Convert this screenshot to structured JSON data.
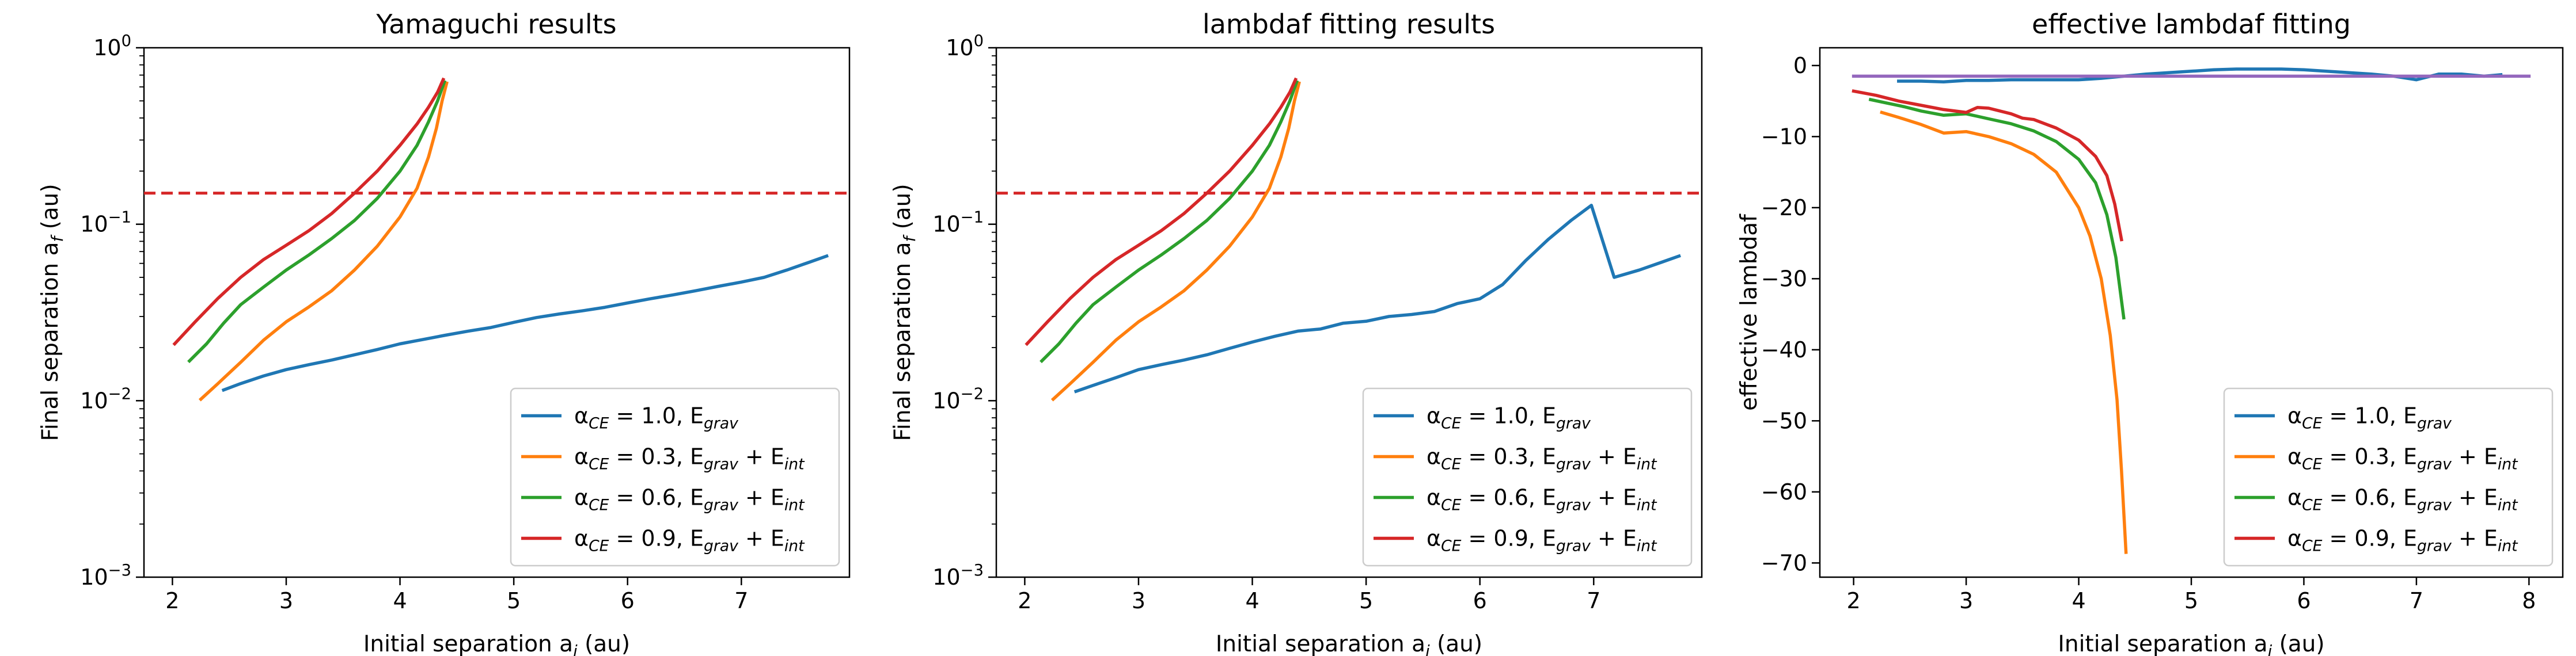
{
  "figure": {
    "x_tick_labels_log": [
      "2",
      "3",
      "4",
      "5",
      "6",
      "7"
    ],
    "x_tick_labels_lin": [
      "2",
      "3",
      "4",
      "5",
      "6",
      "7",
      "8"
    ],
    "y_tick_labels_log": [
      "10^-3",
      "10^-2",
      "10^-1",
      "10^0"
    ],
    "y_tick_labels_lin": [
      "0",
      "−10",
      "−20",
      "−30",
      "−40",
      "−50",
      "−60",
      "−70"
    ]
  },
  "chart_data": [
    {
      "type": "line",
      "title": "Yamaguchi results",
      "xlabel": "Initial separation a_i (au)",
      "ylabel": "Final separation a_f (au)",
      "yscale": "log",
      "xlim": [
        1.75,
        7.95
      ],
      "ylim": [
        0.001,
        1.0
      ],
      "xticks": [
        2,
        3,
        4,
        5,
        6,
        7
      ],
      "hline": {
        "y": 0.15,
        "color": "#d62728",
        "style": "dashed"
      },
      "legend_position": "lower right",
      "series": [
        {
          "name": "α_CE = 1.0, E_grav",
          "color": "#1f77b4",
          "x": [
            2.45,
            2.6,
            2.8,
            3.0,
            3.2,
            3.4,
            3.6,
            3.8,
            4.0,
            4.2,
            4.4,
            4.6,
            4.8,
            5.0,
            5.2,
            5.4,
            5.6,
            5.8,
            6.0,
            6.2,
            6.4,
            6.6,
            6.8,
            7.0,
            7.2,
            7.4,
            7.6,
            7.75
          ],
          "y": [
            0.0115,
            0.0125,
            0.0138,
            0.015,
            0.016,
            0.017,
            0.0182,
            0.0195,
            0.021,
            0.0222,
            0.0235,
            0.0248,
            0.026,
            0.0278,
            0.0296,
            0.031,
            0.0323,
            0.0338,
            0.0358,
            0.0378,
            0.0398,
            0.042,
            0.0445,
            0.047,
            0.05,
            0.055,
            0.061,
            0.066
          ]
        },
        {
          "name": "α_CE = 0.3, E_grav + E_int",
          "color": "#ff7f0e",
          "x": [
            2.25,
            2.4,
            2.6,
            2.8,
            3.0,
            3.2,
            3.4,
            3.6,
            3.8,
            4.0,
            4.15,
            4.25,
            4.32,
            4.37,
            4.41
          ],
          "y": [
            0.0102,
            0.0125,
            0.0165,
            0.022,
            0.028,
            0.034,
            0.042,
            0.055,
            0.075,
            0.11,
            0.16,
            0.24,
            0.35,
            0.5,
            0.63
          ]
        },
        {
          "name": "α_CE = 0.6, E_grav + E_int",
          "color": "#2ca02c",
          "x": [
            2.15,
            2.3,
            2.45,
            2.6,
            2.8,
            3.0,
            3.2,
            3.4,
            3.6,
            3.8,
            4.0,
            4.15,
            4.25,
            4.33,
            4.39
          ],
          "y": [
            0.0168,
            0.021,
            0.0275,
            0.035,
            0.044,
            0.055,
            0.067,
            0.083,
            0.105,
            0.14,
            0.2,
            0.28,
            0.38,
            0.5,
            0.64
          ]
        },
        {
          "name": "α_CE = 0.9, E_grav + E_int",
          "color": "#d62728",
          "x": [
            2.02,
            2.2,
            2.4,
            2.6,
            2.8,
            3.0,
            3.2,
            3.4,
            3.6,
            3.8,
            4.0,
            4.15,
            4.25,
            4.33,
            4.38
          ],
          "y": [
            0.021,
            0.028,
            0.038,
            0.05,
            0.063,
            0.076,
            0.092,
            0.115,
            0.15,
            0.2,
            0.28,
            0.37,
            0.46,
            0.56,
            0.66
          ]
        }
      ]
    },
    {
      "type": "line",
      "title": "lambdaf fitting results",
      "xlabel": "Initial separation a_i (au)",
      "ylabel": "Final separation a_f (au)",
      "yscale": "log",
      "xlim": [
        1.75,
        7.95
      ],
      "ylim": [
        0.001,
        1.0
      ],
      "xticks": [
        2,
        3,
        4,
        5,
        6,
        7
      ],
      "hline": {
        "y": 0.15,
        "color": "#d62728",
        "style": "dashed"
      },
      "legend_position": "lower right",
      "series": [
        {
          "name": "α_CE = 1.0, E_grav",
          "color": "#1f77b4",
          "x": [
            2.45,
            2.6,
            2.8,
            3.0,
            3.2,
            3.4,
            3.6,
            3.8,
            4.0,
            4.2,
            4.4,
            4.6,
            4.8,
            5.0,
            5.2,
            5.4,
            5.6,
            5.8,
            6.0,
            6.2,
            6.4,
            6.6,
            6.8,
            6.98,
            7.18,
            7.4,
            7.6,
            7.75
          ],
          "y": [
            0.0113,
            0.0122,
            0.0135,
            0.015,
            0.016,
            0.017,
            0.0182,
            0.0198,
            0.0215,
            0.0232,
            0.0248,
            0.0255,
            0.0275,
            0.0282,
            0.03,
            0.0308,
            0.032,
            0.0355,
            0.0378,
            0.0455,
            0.062,
            0.082,
            0.105,
            0.128,
            0.05,
            0.055,
            0.061,
            0.066
          ]
        },
        {
          "name": "α_CE = 0.3, E_grav + E_int",
          "color": "#ff7f0e",
          "x": [
            2.25,
            2.4,
            2.6,
            2.8,
            3.0,
            3.2,
            3.4,
            3.6,
            3.8,
            4.0,
            4.15,
            4.25,
            4.32,
            4.37,
            4.41
          ],
          "y": [
            0.0102,
            0.0125,
            0.0165,
            0.022,
            0.028,
            0.034,
            0.042,
            0.055,
            0.075,
            0.11,
            0.16,
            0.24,
            0.35,
            0.5,
            0.63
          ]
        },
        {
          "name": "α_CE = 0.6, E_grav + E_int",
          "color": "#2ca02c",
          "x": [
            2.15,
            2.3,
            2.45,
            2.6,
            2.8,
            3.0,
            3.2,
            3.4,
            3.6,
            3.8,
            4.0,
            4.15,
            4.25,
            4.33,
            4.39
          ],
          "y": [
            0.0168,
            0.021,
            0.0275,
            0.035,
            0.044,
            0.055,
            0.067,
            0.083,
            0.105,
            0.14,
            0.2,
            0.28,
            0.38,
            0.5,
            0.64
          ]
        },
        {
          "name": "α_CE = 0.9, E_grav + E_int",
          "color": "#d62728",
          "x": [
            2.02,
            2.2,
            2.4,
            2.6,
            2.8,
            3.0,
            3.2,
            3.4,
            3.6,
            3.8,
            4.0,
            4.15,
            4.25,
            4.33,
            4.38
          ],
          "y": [
            0.021,
            0.028,
            0.038,
            0.05,
            0.063,
            0.076,
            0.092,
            0.115,
            0.15,
            0.2,
            0.28,
            0.37,
            0.46,
            0.56,
            0.66
          ]
        }
      ]
    },
    {
      "type": "line",
      "title": "effective lambdaf fitting",
      "xlabel": "Initial separation a_i (au)",
      "ylabel": "effective lambdaf",
      "yscale": "linear",
      "xlim": [
        1.7,
        8.3
      ],
      "ylim": [
        -72.0,
        2.5
      ],
      "xticks": [
        2,
        3,
        4,
        5,
        6,
        7,
        8
      ],
      "yticks": [
        0,
        -10,
        -20,
        -30,
        -40,
        -50,
        -60,
        -70
      ],
      "legend_position": "lower right",
      "series": [
        {
          "name": "α_CE = 1.0, E_grav",
          "color": "#1f77b4",
          "x": [
            2.4,
            2.6,
            2.8,
            3.0,
            3.2,
            3.4,
            3.6,
            3.8,
            4.0,
            4.2,
            4.4,
            4.6,
            4.8,
            5.0,
            5.2,
            5.4,
            5.6,
            5.8,
            6.0,
            6.2,
            6.4,
            6.6,
            6.8,
            7.0,
            7.2,
            7.4,
            7.6,
            7.75
          ],
          "y": [
            -2.2,
            -2.2,
            -2.3,
            -2.1,
            -2.1,
            -2.0,
            -2.0,
            -2.0,
            -2.0,
            -1.8,
            -1.5,
            -1.2,
            -1.0,
            -0.8,
            -0.6,
            -0.5,
            -0.5,
            -0.5,
            -0.6,
            -0.8,
            -1.0,
            -1.2,
            -1.5,
            -2.0,
            -1.2,
            -1.2,
            -1.5,
            -1.3
          ]
        },
        {
          "name": "α_CE = 0.3, E_grav + E_int",
          "color": "#ff7f0e",
          "x": [
            2.25,
            2.4,
            2.6,
            2.8,
            3.0,
            3.2,
            3.4,
            3.6,
            3.8,
            4.0,
            4.1,
            4.2,
            4.28,
            4.34,
            4.38,
            4.42
          ],
          "y": [
            -6.6,
            -7.3,
            -8.3,
            -9.5,
            -9.3,
            -10.0,
            -11.0,
            -12.5,
            -15.0,
            -20.0,
            -24.0,
            -30.0,
            -38.0,
            -47.0,
            -57.0,
            -68.5
          ]
        },
        {
          "name": "α_CE = 0.6, E_grav + E_int",
          "color": "#2ca02c",
          "x": [
            2.15,
            2.3,
            2.45,
            2.6,
            2.8,
            3.0,
            3.2,
            3.4,
            3.6,
            3.8,
            4.0,
            4.15,
            4.25,
            4.33,
            4.4
          ],
          "y": [
            -4.8,
            -5.3,
            -5.8,
            -6.4,
            -7.0,
            -6.8,
            -7.5,
            -8.2,
            -9.2,
            -10.7,
            -13.2,
            -16.5,
            -21.0,
            -27.0,
            -35.5
          ]
        },
        {
          "name": "α_CE = 0.9, E_grav + E_int",
          "color": "#d62728",
          "x": [
            2.0,
            2.2,
            2.4,
            2.6,
            2.8,
            3.0,
            3.1,
            3.2,
            3.4,
            3.5,
            3.6,
            3.8,
            4.0,
            4.15,
            4.25,
            4.32,
            4.38
          ],
          "y": [
            -3.6,
            -4.2,
            -5.0,
            -5.6,
            -6.2,
            -6.6,
            -5.9,
            -6.0,
            -6.8,
            -7.4,
            -7.6,
            -8.8,
            -10.5,
            -12.8,
            -15.5,
            -19.5,
            -24.5
          ]
        },
        {
          "name": "",
          "color": "#9467bd",
          "x": [
            2.0,
            3.0,
            4.0,
            5.0,
            6.0,
            7.0,
            8.0
          ],
          "y": [
            -1.5,
            -1.5,
            -1.5,
            -1.5,
            -1.5,
            -1.5,
            -1.5
          ]
        }
      ]
    }
  ]
}
